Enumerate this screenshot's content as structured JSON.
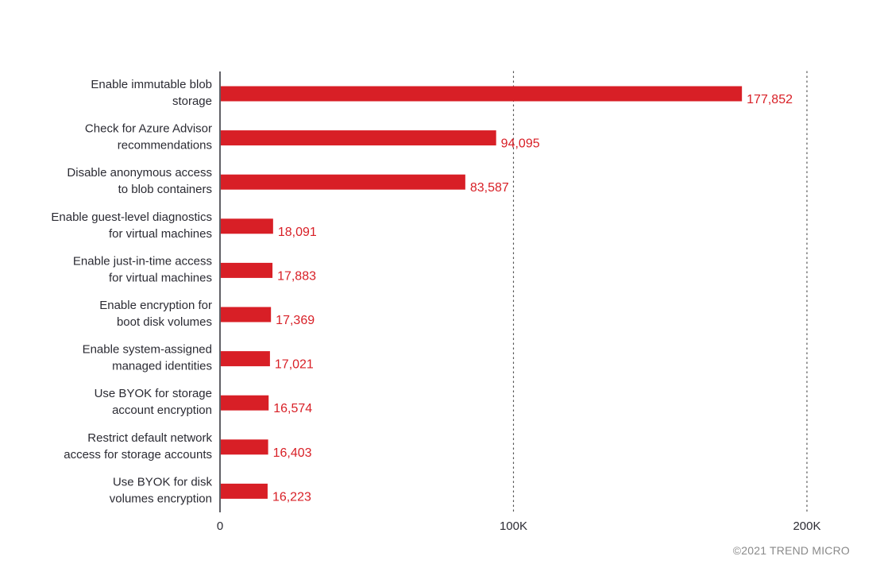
{
  "chart_data": {
    "type": "bar",
    "orientation": "horizontal",
    "categories": [
      [
        "Enable immutable blob",
        "storage"
      ],
      [
        "Check for Azure Advisor",
        "recommendations"
      ],
      [
        "Disable anonymous access",
        "to blob containers"
      ],
      [
        "Enable guest-level diagnostics",
        "for virtual machines"
      ],
      [
        "Enable just-in-time access",
        "for virtual machines"
      ],
      [
        "Enable encryption for",
        "boot disk volumes"
      ],
      [
        "Enable system-assigned",
        "managed identities"
      ],
      [
        "Use BYOK for storage",
        "account encryption"
      ],
      [
        "Restrict default network",
        "access for storage accounts"
      ],
      [
        "Use BYOK for disk",
        "volumes encryption"
      ]
    ],
    "values": [
      177852,
      94095,
      83587,
      18091,
      17883,
      17369,
      17021,
      16574,
      16403,
      16223
    ],
    "value_labels": [
      "177,852",
      "94,095",
      "83,587",
      "18,091",
      "17,883",
      "17,369",
      "17,021",
      "16,574",
      "16,403",
      "16,223"
    ],
    "xlim": [
      0,
      200000
    ],
    "xticks": [
      0,
      100000,
      200000
    ],
    "xtick_labels": [
      "0",
      "100K",
      "200K"
    ],
    "grid": "dotted vertical at 100K and 200K",
    "title": "",
    "xlabel": "",
    "ylabel": "",
    "bar_color": "#d81f26",
    "value_label_color": "#d81f26"
  },
  "footer": {
    "copyright": "©2021 TREND MICRO"
  }
}
